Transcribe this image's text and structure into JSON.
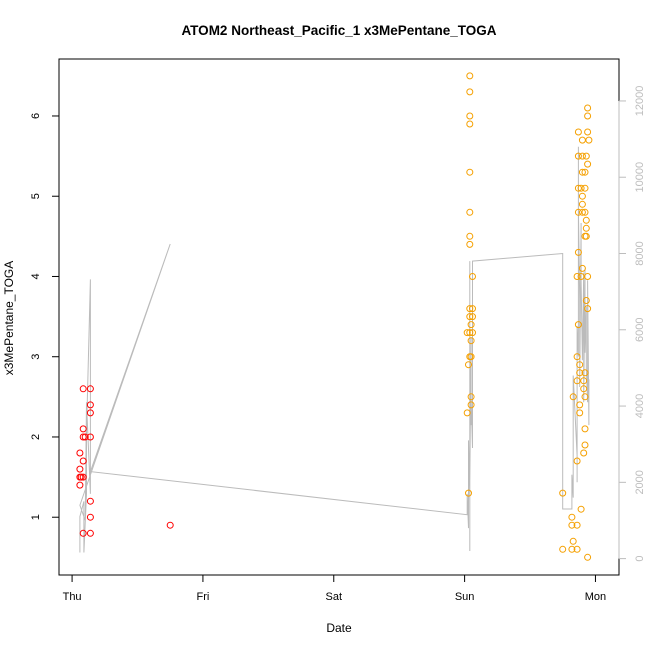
{
  "chart_data": {
    "type": "scatter",
    "title": "ATOM2 Northeast_Pacific_1 x3MePentane_TOGA",
    "xlabel": "Date",
    "ylabel": "x3MePentane_TOGA",
    "x_tick_labels": [
      "Thu",
      "Fri",
      "Sat",
      "Sun",
      "Mon"
    ],
    "x_unit": "days since Thu 00:00",
    "xlim": [
      -0.1,
      4.18
    ],
    "ylim": [
      0.28,
      6.71
    ],
    "y_ticks": [
      1,
      2,
      3,
      4,
      5,
      6
    ],
    "y2_ticks": [
      0,
      2000,
      4000,
      6000,
      8000,
      10000,
      12000
    ],
    "y2lim": [
      -430,
      13100
    ],
    "grid": false,
    "legend": "none",
    "colors": {
      "red": "#ff0000",
      "orange": "#f5a000",
      "line": "#bbbbbb",
      "axis": "#000000",
      "y2_axis": "#bdbdbd"
    },
    "series": [
      {
        "color": "#ff0000",
        "points": [
          [
            0.06,
            1.5
          ],
          [
            0.06,
            1.6
          ],
          [
            0.06,
            1.4
          ],
          [
            0.06,
            1.8
          ],
          [
            0.07,
            1.5
          ],
          [
            0.085,
            2.6
          ],
          [
            0.085,
            2.1
          ],
          [
            0.085,
            2.0
          ],
          [
            0.085,
            1.7
          ],
          [
            0.085,
            1.5
          ],
          [
            0.085,
            0.8
          ],
          [
            0.1,
            2.0
          ],
          [
            0.14,
            2.6
          ],
          [
            0.14,
            2.4
          ],
          [
            0.14,
            2.3
          ],
          [
            0.14,
            2.0
          ],
          [
            0.14,
            1.2
          ],
          [
            0.14,
            1.0
          ],
          [
            0.14,
            0.8
          ],
          [
            0.75,
            0.9
          ]
        ]
      },
      {
        "color": "#f5a000",
        "points": [
          [
            3.02,
            3.3
          ],
          [
            3.02,
            2.3
          ],
          [
            3.03,
            1.3
          ],
          [
            3.03,
            2.9
          ],
          [
            3.04,
            6.5
          ],
          [
            3.04,
            6.3
          ],
          [
            3.04,
            6.0
          ],
          [
            3.04,
            5.9
          ],
          [
            3.04,
            5.3
          ],
          [
            3.04,
            4.8
          ],
          [
            3.04,
            4.5
          ],
          [
            3.04,
            4.4
          ],
          [
            3.04,
            3.6
          ],
          [
            3.04,
            3.5
          ],
          [
            3.04,
            3.3
          ],
          [
            3.04,
            3.0
          ],
          [
            3.05,
            3.4
          ],
          [
            3.05,
            3.2
          ],
          [
            3.05,
            2.5
          ],
          [
            3.05,
            2.4
          ],
          [
            3.05,
            3.0
          ],
          [
            3.06,
            4.0
          ],
          [
            3.06,
            3.6
          ],
          [
            3.06,
            3.5
          ],
          [
            3.06,
            3.3
          ],
          [
            3.75,
            0.6
          ],
          [
            3.75,
            1.3
          ],
          [
            3.82,
            0.6
          ],
          [
            3.82,
            0.9
          ],
          [
            3.82,
            1.0
          ],
          [
            3.83,
            0.7
          ],
          [
            3.83,
            2.5
          ],
          [
            3.86,
            1.7
          ],
          [
            3.86,
            2.7
          ],
          [
            3.86,
            3.0
          ],
          [
            3.86,
            4.0
          ],
          [
            3.86,
            0.6
          ],
          [
            3.86,
            0.9
          ],
          [
            3.87,
            5.8
          ],
          [
            3.87,
            5.5
          ],
          [
            3.87,
            5.1
          ],
          [
            3.87,
            4.8
          ],
          [
            3.87,
            4.3
          ],
          [
            3.87,
            3.4
          ],
          [
            3.88,
            2.9
          ],
          [
            3.88,
            2.8
          ],
          [
            3.88,
            2.3
          ],
          [
            3.88,
            2.4
          ],
          [
            3.89,
            5.1
          ],
          [
            3.89,
            1.1
          ],
          [
            3.89,
            4.0
          ],
          [
            3.9,
            5.7
          ],
          [
            3.9,
            5.5
          ],
          [
            3.9,
            5.3
          ],
          [
            3.9,
            5.0
          ],
          [
            3.9,
            4.9
          ],
          [
            3.9,
            4.8
          ],
          [
            3.9,
            4.1
          ],
          [
            3.91,
            2.7
          ],
          [
            3.91,
            1.8
          ],
          [
            3.91,
            2.6
          ],
          [
            3.92,
            5.3
          ],
          [
            3.92,
            5.1
          ],
          [
            3.92,
            4.8
          ],
          [
            3.92,
            4.5
          ],
          [
            3.92,
            2.1
          ],
          [
            3.92,
            2.5
          ],
          [
            3.92,
            1.9
          ],
          [
            3.92,
            2.8
          ],
          [
            3.93,
            5.5
          ],
          [
            3.93,
            4.7
          ],
          [
            3.93,
            4.6
          ],
          [
            3.93,
            4.5
          ],
          [
            3.93,
            3.7
          ],
          [
            3.94,
            6.1
          ],
          [
            3.94,
            6.0
          ],
          [
            3.94,
            5.8
          ],
          [
            3.94,
            5.4
          ],
          [
            3.94,
            4.0
          ],
          [
            3.94,
            3.6
          ],
          [
            3.94,
            0.5
          ],
          [
            3.95,
            5.7
          ]
        ]
      }
    ],
    "secondary_line": {
      "color": "#bbbbbb",
      "axis": "right",
      "points": [
        [
          0.06,
          160
        ],
        [
          0.06,
          1100
        ],
        [
          0.09,
          1500
        ],
        [
          0.09,
          160
        ],
        [
          0.11,
          1700
        ],
        [
          0.11,
          3300
        ],
        [
          0.14,
          7320
        ],
        [
          0.14,
          1700
        ],
        [
          0.11,
          4100
        ],
        [
          0.1,
          1000
        ],
        [
          0.06,
          1400
        ],
        [
          0.75,
          8250
        ],
        [
          0.14,
          2280
        ],
        [
          3.02,
          1150
        ],
        [
          3.02,
          1700
        ],
        [
          3.03,
          800
        ],
        [
          3.03,
          3100
        ],
        [
          3.04,
          1600
        ],
        [
          3.04,
          200
        ],
        [
          3.04,
          6000
        ],
        [
          3.04,
          7800
        ],
        [
          3.04,
          2000
        ],
        [
          3.05,
          5800
        ],
        [
          3.05,
          3500
        ],
        [
          3.05,
          4200
        ],
        [
          3.06,
          2900
        ],
        [
          3.06,
          7800
        ],
        [
          3.75,
          8000
        ],
        [
          3.75,
          1300
        ],
        [
          3.82,
          1300
        ],
        [
          3.82,
          2200
        ],
        [
          3.83,
          1600
        ],
        [
          3.83,
          4800
        ],
        [
          3.86,
          2700
        ],
        [
          3.86,
          2000
        ],
        [
          3.86,
          6100
        ],
        [
          3.87,
          5300
        ],
        [
          3.87,
          10800
        ],
        [
          3.87,
          9200
        ],
        [
          3.88,
          6800
        ],
        [
          3.88,
          4500
        ],
        [
          3.89,
          8800
        ],
        [
          3.89,
          7300
        ],
        [
          3.9,
          5200
        ],
        [
          3.91,
          7500
        ],
        [
          3.91,
          4100
        ],
        [
          3.92,
          7600
        ],
        [
          3.92,
          5400
        ],
        [
          3.93,
          6600
        ],
        [
          3.93,
          5000
        ],
        [
          3.94,
          4100
        ],
        [
          3.94,
          7300
        ],
        [
          3.95,
          3500
        ],
        [
          3.95,
          4700
        ]
      ]
    }
  }
}
